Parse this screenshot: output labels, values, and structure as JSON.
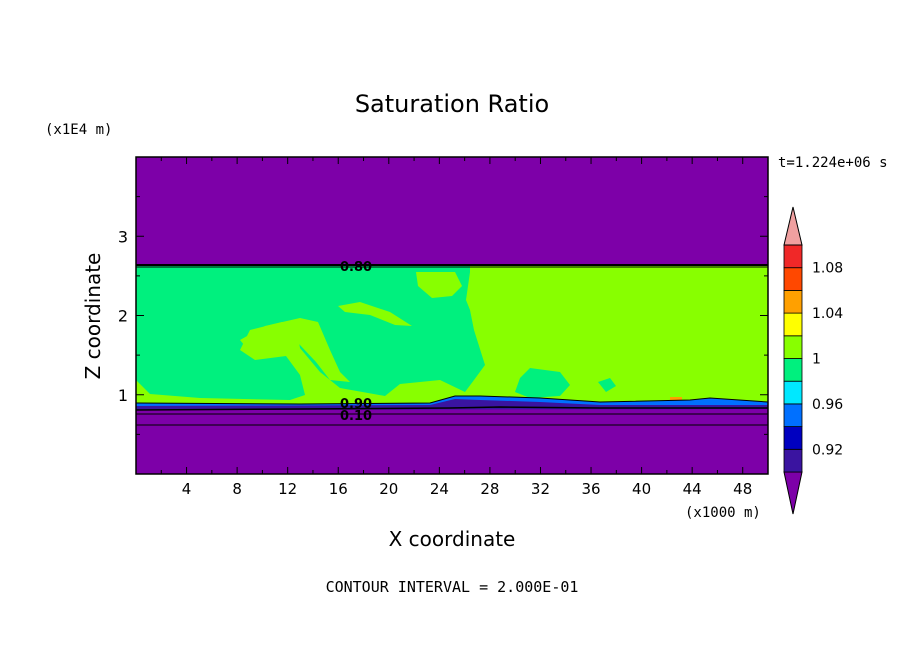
{
  "chart_data": {
    "type": "heatmap",
    "title": "Saturation Ratio",
    "xlabel": "X coordinate",
    "ylabel": "Z coordinate",
    "x_unit": "(x1000 m)",
    "y_unit": "(x1E4 m)",
    "time_label": "t=1.224e+06 s",
    "footer": "CONTOUR INTERVAL = 2.000E-01",
    "xlim": [
      0,
      50
    ],
    "ylim": [
      0,
      4
    ],
    "x_ticks": [
      "4",
      "8",
      "12",
      "16",
      "20",
      "24",
      "28",
      "32",
      "36",
      "40",
      "44",
      "48"
    ],
    "y_ticks": [
      "1",
      "2",
      "3"
    ],
    "contour_labels": [
      "0.80",
      "0.90",
      "0.10"
    ],
    "colorbar": {
      "tick_labels": [
        "0.92",
        "0.96",
        "1",
        "1.04",
        "1.08"
      ],
      "levels": [
        {
          "lo": null,
          "hi": 0.9,
          "color": "#7d00a8"
        },
        {
          "lo": 0.9,
          "hi": 0.92,
          "color": "#3a14a0"
        },
        {
          "lo": 0.92,
          "hi": 0.94,
          "color": "#0000c0"
        },
        {
          "lo": 0.94,
          "hi": 0.96,
          "color": "#0070ff"
        },
        {
          "lo": 0.96,
          "hi": 0.98,
          "color": "#00e8ff"
        },
        {
          "lo": 0.98,
          "hi": 1.0,
          "color": "#00f07e"
        },
        {
          "lo": 1.0,
          "hi": 1.02,
          "color": "#88ff00"
        },
        {
          "lo": 1.02,
          "hi": 1.04,
          "color": "#ffff00"
        },
        {
          "lo": 1.04,
          "hi": 1.06,
          "color": "#ffa000"
        },
        {
          "lo": 1.06,
          "hi": 1.08,
          "color": "#ff4800"
        },
        {
          "lo": 1.08,
          "hi": 1.1,
          "color": "#f02828"
        },
        {
          "lo": 1.1,
          "hi": null,
          "color": "#f0a0a0"
        }
      ]
    },
    "regions": [
      {
        "name": "upper-dry-layer",
        "z_from": 2.62,
        "z_to": 4.0,
        "color": "#7d00a8"
      },
      {
        "name": "saturated-layer",
        "z_from": 0.88,
        "z_to": 2.62,
        "color": "#88ff00"
      },
      {
        "name": "lower-dry-layer",
        "z_from": 0.0,
        "z_to": 0.88,
        "color": "#7d00a8"
      }
    ]
  }
}
